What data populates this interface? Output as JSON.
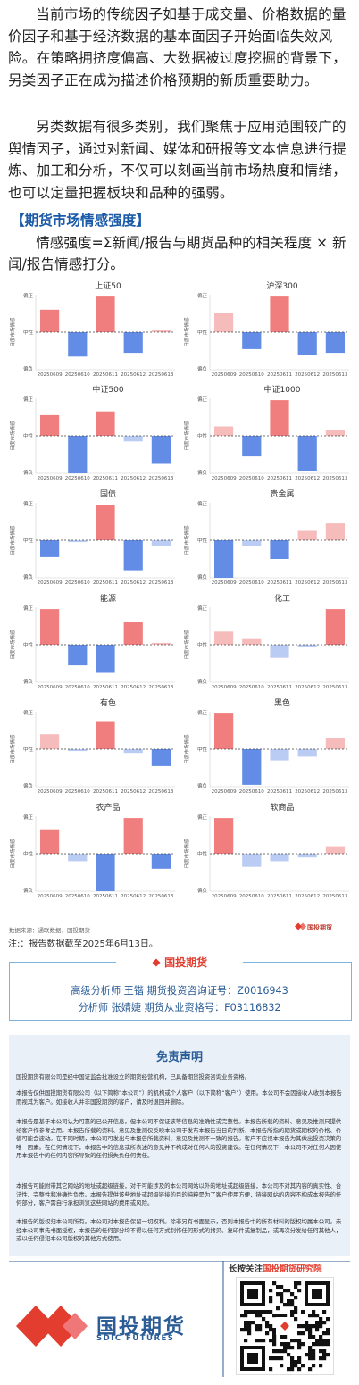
{
  "article": {
    "p1": "当前市场的传统因子如基于成交量、价格数据的量价因子和基于经济数据的基本面因子开始面临失效风险。在策略拥挤度偏高、大数据被过度挖掘的背景下，另类因子正在成为描述价格预期的新质重要助力。",
    "p2": "另类数据有很多类别，我们聚焦于应用范围较广的舆情因子，通过对新闻、媒体和研报等文本信息进行提炼、加工和分析，不仅可以刻画当前市场热度和情绪，也可以定量把握板块和品种的强弱。",
    "heading": "【期货市场情感强度】",
    "formula": "情感强度=Σ新闻/报告与期货品种的相关程度 × 新闻/报告情感打分。"
  },
  "chart_labels": {
    "y_top": "偏正",
    "y_mid": "中性",
    "y_bottom": "偏负",
    "y_axis": "日度市场情感"
  },
  "colors": {
    "pos_strong": "#f07777",
    "pos_light": "#f5b8b8",
    "neg_strong": "#5b86e5",
    "neg_light": "#b7c9f3"
  },
  "chart_data": [
    {
      "type": "bar",
      "title": "上证50",
      "categories": [
        "20250609",
        "20250610",
        "20250611",
        "20250612",
        "20250613"
      ],
      "values": [
        0.6,
        -0.65,
        0.95,
        -0.55,
        0.05
      ],
      "ylim": [
        -1,
        1
      ]
    },
    {
      "type": "bar",
      "title": "沪深300",
      "categories": [
        "20250609",
        "20250610",
        "20250611",
        "20250612",
        "20250613"
      ],
      "values": [
        0.5,
        -0.45,
        0.95,
        -0.6,
        -0.55
      ],
      "ylim": [
        -1,
        1
      ]
    },
    {
      "type": "bar",
      "title": "中证500",
      "categories": [
        "20250609",
        "20250610",
        "20250611",
        "20250612",
        "20250613"
      ],
      "values": [
        0.55,
        -1.0,
        0.65,
        -0.15,
        -0.75
      ],
      "ylim": [
        -1,
        1
      ]
    },
    {
      "type": "bar",
      "title": "中证1000",
      "categories": [
        "20250609",
        "20250610",
        "20250611",
        "20250612",
        "20250613"
      ],
      "values": [
        0.25,
        -0.55,
        0.95,
        -0.95,
        0.15
      ],
      "ylim": [
        -1,
        1
      ]
    },
    {
      "type": "bar",
      "title": "国债",
      "categories": [
        "20250609",
        "20250610",
        "20250611",
        "20250612",
        "20250613"
      ],
      "values": [
        -0.45,
        -0.05,
        0.95,
        -0.8,
        -0.15
      ],
      "ylim": [
        -1,
        1
      ]
    },
    {
      "type": "bar",
      "title": "贵金属",
      "categories": [
        "20250609",
        "20250610",
        "20250611",
        "20250612",
        "20250613"
      ],
      "values": [
        -1.0,
        -0.15,
        -0.5,
        0.25,
        0.45
      ],
      "ylim": [
        -1,
        1
      ]
    },
    {
      "type": "bar",
      "title": "能源",
      "categories": [
        "20250609",
        "20250610",
        "20250611",
        "20250612",
        "20250613"
      ],
      "values": [
        0.95,
        -0.55,
        -0.75,
        0.6,
        0.05
      ],
      "ylim": [
        -1,
        1
      ]
    },
    {
      "type": "bar",
      "title": "化工",
      "categories": [
        "20250609",
        "20250610",
        "20250611",
        "20250612",
        "20250613"
      ],
      "values": [
        0.35,
        0.15,
        -0.35,
        -0.05,
        0.95
      ],
      "ylim": [
        -1,
        1
      ]
    },
    {
      "type": "bar",
      "title": "有色",
      "categories": [
        "20250609",
        "20250610",
        "20250611",
        "20250612",
        "20250613"
      ],
      "values": [
        0.4,
        -0.05,
        0.75,
        -0.1,
        -0.45
      ],
      "ylim": [
        -1,
        1
      ]
    },
    {
      "type": "bar",
      "title": "黑色",
      "categories": [
        "20250609",
        "20250610",
        "20250611",
        "20250612",
        "20250613"
      ],
      "values": [
        0.95,
        -0.95,
        -0.3,
        -0.2,
        0.3
      ],
      "ylim": [
        -1,
        1
      ]
    },
    {
      "type": "bar",
      "title": "农产品",
      "categories": [
        "20250609",
        "20250610",
        "20250611",
        "20250612",
        "20250613"
      ],
      "values": [
        0.65,
        -0.2,
        -1.0,
        0.95,
        -0.4
      ],
      "ylim": [
        -1,
        1
      ]
    },
    {
      "type": "bar",
      "title": "软商品",
      "categories": [
        "20250609",
        "20250610",
        "20250611",
        "20250612",
        "20250613"
      ],
      "values": [
        0.95,
        -0.35,
        -0.2,
        -0.1,
        0.2
      ],
      "ylim": [
        -1,
        1
      ]
    }
  ],
  "source": {
    "text": "数据来源：通联数据，国投期货",
    "logo": "国投期货"
  },
  "note": "注:：报告数据截至2025年6月13日。",
  "analysts": {
    "title": "国投期货",
    "line1": "高级分析师  王锴  期货投资咨询证号：Z0016943",
    "line2": "分析师  张婧婕  期货从业资格号：F03116832"
  },
  "disclaimer": {
    "title": "免责声明",
    "p1": "国投期货有限公司是经中国证监会批准设立的期货经营机构，已具备期货投资咨询业务资格。",
    "p2": "本报告仅供国投期货有限公司（以下简称“本公司”）的机构或个人客户（以下简称“客户”）使用。本公司不会因接收人收到本报告而视其为客户。如接收人并非国投期货的客户，请及时退回并删除。",
    "p3": "本报告是基于本公司认为可靠的已公开信息，但本公司不保证该等信息的准确性或完整性。本报告所载的资料、意见及推测只提供给客户作参考之用。本报告所载的资料、意见及推测仅反映本公司于发布本报告当日的判断，本报告所指的期货或期权的价格、价值可能会波动。在不同时期，本公司可发出与本报告所载资料、意见及推测不一致的报告。客户不应视本报告为其做出投资决策的唯一因素。在任何情况下，本报告中的信息或所表述的意见并不构成对任何人的投资建议。在任何情况下，本公司不对任何人因使用本报告中的任何内容所导致的任何损失负任何责任。",
    "p4": "本报告可能附带其它网站的地址或超级链接，对于可能涉及的本公司网站以外的地址或超级链接，本公司不对其内容的真实性、合法性、完整性和准确性负责。本报告提供该些地址或超级链接的目的纯粹是为了客户使用方便，链接网站的内容不构成本报告的任何部分，客户需自行承担浏览这些网站的费用或风险。",
    "p5": "本报告的版权归本公司所有。本公司对本报告保留一切权利。除非另有书面显示，否则本报告中的所有材料的版权均属本公司。未经本公司事先书面授权，本报告的任何部分均不得以任何方式制作任何形式的拷贝、复印件或复制品，或再次分发给任何其他人，或以任何侵犯本公司版权的其他方式使用。"
  },
  "footer": {
    "follow_prefix": "长按关注",
    "follow_name": "国投期货研究院",
    "logo_cn": "国投期货",
    "logo_en": "SDIC FUTURES"
  }
}
